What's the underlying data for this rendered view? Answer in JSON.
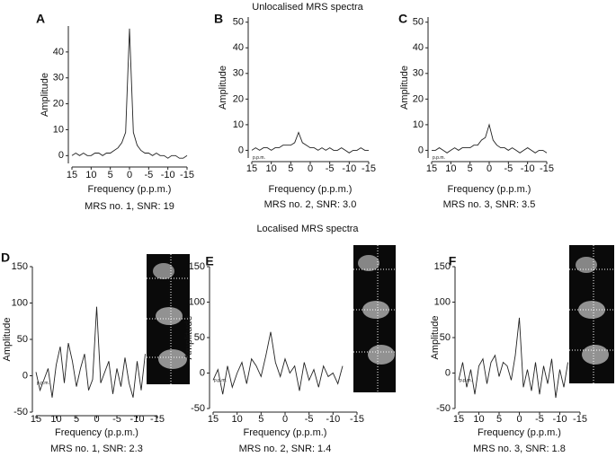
{
  "headings": [
    "Unlocalised MRS spectra",
    "Localised MRS spectra"
  ],
  "chart_data": [
    {
      "type": "line",
      "letter": "A",
      "caption": "MRS no. 1, SNR: 19",
      "xlabel": "Frequency (p.p.m.)",
      "ylabel": "Amplitude",
      "color": "#222",
      "x": [
        15,
        14,
        13,
        12,
        11,
        10,
        9,
        8,
        7,
        6,
        5,
        4,
        3,
        2,
        1,
        0,
        -1,
        -2,
        -3,
        -4,
        -5,
        -6,
        -7,
        -8,
        -9,
        -10,
        -11,
        -12,
        -13,
        -14,
        -15
      ],
      "values": [
        0,
        1,
        0,
        1,
        0,
        0,
        1,
        1,
        0,
        1,
        1,
        2,
        3,
        5,
        9,
        49,
        9,
        4,
        2,
        1,
        1,
        0,
        1,
        0,
        0,
        -1,
        0,
        0,
        -1,
        -1,
        0
      ],
      "xlim": [
        15,
        -15
      ],
      "xticks": [
        15,
        10,
        5,
        0,
        -5,
        -10,
        -15
      ],
      "ylim": [
        -3,
        50
      ],
      "yticks": [
        0,
        10,
        20,
        30,
        40
      ]
    },
    {
      "type": "line",
      "letter": "B",
      "caption": "MRS no. 2, SNR: 3.0",
      "xlabel": "Frequency (p.p.m.)",
      "ylabel": "Amplitude",
      "note": "p.p.m.",
      "color": "#222",
      "x": [
        15,
        14,
        13,
        12,
        11,
        10,
        9,
        8,
        7,
        6,
        5,
        4,
        3,
        2,
        1,
        0,
        -1,
        -2,
        -3,
        -4,
        -5,
        -6,
        -7,
        -8,
        -9,
        -10,
        -11,
        -12,
        -13,
        -14,
        -15
      ],
      "values": [
        0,
        1,
        0,
        1,
        1,
        0,
        1,
        1,
        2,
        2,
        2,
        3,
        7,
        3,
        2,
        1,
        1,
        0,
        1,
        0,
        1,
        0,
        0,
        1,
        0,
        -1,
        0,
        0,
        1,
        0,
        0
      ],
      "xlim": [
        15,
        -15
      ],
      "xticks": [
        15,
        10,
        5,
        0,
        -5,
        -10,
        -15
      ],
      "ylim": [
        -3,
        52
      ],
      "yticks": [
        0,
        10,
        20,
        30,
        40,
        50
      ]
    },
    {
      "type": "line",
      "letter": "C",
      "caption": "MRS no. 3, SNR: 3.5",
      "xlabel": "Frequency (p.p.m.)",
      "ylabel": "Amplitude",
      "note": "p.p.m.",
      "color": "#222",
      "x": [
        15,
        14,
        13,
        12,
        11,
        10,
        9,
        8,
        7,
        6,
        5,
        4,
        3,
        2,
        1,
        0,
        -1,
        -2,
        -3,
        -4,
        -5,
        -6,
        -7,
        -8,
        -9,
        -10,
        -11,
        -12,
        -13,
        -14,
        -15
      ],
      "values": [
        0,
        0,
        1,
        0,
        -1,
        0,
        1,
        0,
        1,
        1,
        1,
        2,
        2,
        4,
        5,
        10,
        4,
        2,
        1,
        1,
        0,
        1,
        0,
        -1,
        0,
        1,
        0,
        -1,
        0,
        0,
        -1
      ],
      "xlim": [
        15,
        -15
      ],
      "xticks": [
        15,
        10,
        5,
        0,
        -5,
        -10,
        -15
      ],
      "ylim": [
        -3,
        52
      ],
      "yticks": [
        0,
        10,
        20,
        30,
        40,
        50
      ]
    },
    {
      "type": "line",
      "letter": "D",
      "caption": "MRS no. 1, SNR: 2.3",
      "xlabel": "Frequency (p.p.m.)",
      "ylabel": "Amplitude",
      "note": "p.p.m.",
      "color": "#222",
      "x": [
        15,
        14,
        13,
        12,
        11,
        10,
        9,
        8,
        7,
        6,
        5,
        4,
        3,
        2,
        1,
        0,
        -1,
        -2,
        -3,
        -4,
        -5,
        -6,
        -7,
        -8,
        -9,
        -10,
        -11,
        -12
      ],
      "values": [
        5,
        -20,
        -5,
        10,
        -30,
        15,
        40,
        -10,
        45,
        20,
        -15,
        10,
        30,
        -20,
        -5,
        95,
        -10,
        5,
        20,
        -25,
        10,
        -15,
        25,
        -10,
        -30,
        20,
        -20,
        30
      ],
      "xlim": [
        15,
        -15
      ],
      "xticks": [
        15,
        10,
        5,
        0,
        -5,
        -10,
        -15
      ],
      "ylim": [
        -50,
        150
      ],
      "yticks": [
        -50,
        0,
        50,
        100,
        150
      ]
    },
    {
      "type": "line",
      "letter": "E",
      "caption": "MRS no. 2, SNR: 1.4",
      "xlabel": "Frequency (p.p.m.)",
      "ylabel": "Amplitude",
      "note": "p.p.m.",
      "color": "#222",
      "x": [
        15,
        14,
        13,
        12,
        11,
        10,
        9,
        8,
        7,
        6,
        5,
        4,
        3,
        2,
        1,
        0,
        -1,
        -2,
        -3,
        -4,
        -5,
        -6,
        -7,
        -8,
        -9,
        -10,
        -11,
        -12
      ],
      "values": [
        -10,
        5,
        -30,
        10,
        -20,
        0,
        15,
        -15,
        20,
        10,
        -5,
        25,
        58,
        15,
        -5,
        20,
        0,
        10,
        -25,
        15,
        -10,
        5,
        -20,
        10,
        -5,
        0,
        -15,
        10
      ],
      "xlim": [
        15,
        -15
      ],
      "xticks": [
        15,
        10,
        5,
        0,
        -5,
        -10,
        -15
      ],
      "ylim": [
        -50,
        150
      ],
      "yticks": [
        -50,
        0,
        50,
        100,
        150
      ]
    },
    {
      "type": "line",
      "letter": "F",
      "caption": "MRS no. 3, SNR: 1.8",
      "xlabel": "Frequency (p.p.m.)",
      "ylabel": "Amplitude",
      "note": "p.p.m.",
      "color": "#222",
      "x": [
        15,
        14,
        13,
        12,
        11,
        10,
        9,
        8,
        7,
        6,
        5,
        4,
        3,
        2,
        1,
        0,
        -1,
        -2,
        -3,
        -4,
        -5,
        -6,
        -7,
        -8,
        -9,
        -10,
        -11,
        -12
      ],
      "values": [
        -10,
        15,
        -20,
        5,
        -30,
        10,
        20,
        -15,
        15,
        25,
        -5,
        15,
        10,
        -10,
        25,
        78,
        -20,
        5,
        -25,
        15,
        -30,
        10,
        -15,
        20,
        -35,
        5,
        -20,
        15
      ],
      "xlim": [
        15,
        -15
      ],
      "xticks": [
        15,
        10,
        5,
        0,
        -5,
        -10,
        -15
      ],
      "ylim": [
        -50,
        150
      ],
      "yticks": [
        -50,
        0,
        50,
        100,
        150
      ]
    }
  ]
}
